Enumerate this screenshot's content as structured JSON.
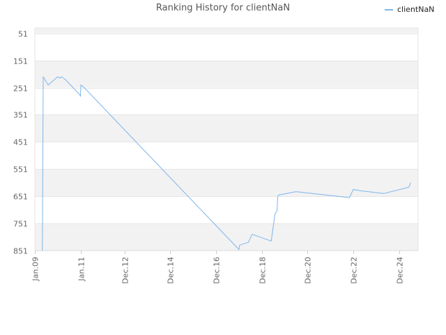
{
  "chart_data": {
    "type": "line",
    "title": "Ranking History for clientNaN",
    "xlabel": "",
    "ylabel": "",
    "y_reversed": true,
    "ylim": [
      31,
      851
    ],
    "xlim": [
      "2009-01-01",
      "2025-10-01"
    ],
    "y_ticks": [
      51,
      151,
      251,
      351,
      451,
      551,
      651,
      751,
      851
    ],
    "x_ticks": [
      {
        "label": "Jan.09",
        "date": "2009-01-01"
      },
      {
        "label": "Jan.11",
        "date": "2011-01-01"
      },
      {
        "label": "Dec.12",
        "date": "2012-12-01"
      },
      {
        "label": "Dec.14",
        "date": "2014-12-01"
      },
      {
        "label": "Dec.16",
        "date": "2016-12-01"
      },
      {
        "label": "Dec.18",
        "date": "2018-12-01"
      },
      {
        "label": "Dec.20",
        "date": "2020-12-01"
      },
      {
        "label": "Dec.22",
        "date": "2022-12-01"
      },
      {
        "label": "Dec.24",
        "date": "2024-12-01"
      }
    ],
    "legend": "top-right",
    "grid": true,
    "series": [
      {
        "name": "clientNaN",
        "color": "#7cb5ec",
        "x": [
          "2009-05-01",
          "2009-05-15",
          "2009-08-01",
          "2010-01-01",
          "2010-02-01",
          "2010-03-01",
          "2010-05-01",
          "2010-12-15",
          "2010-12-31",
          "2011-01-05",
          "2011-03-01",
          "2017-11-15",
          "2017-12-01",
          "2017-12-15",
          "2018-05-01",
          "2018-07-01",
          "2019-05-01",
          "2019-07-01",
          "2019-08-01",
          "2019-08-15",
          "2019-09-01",
          "2020-01-01",
          "2020-06-01",
          "2022-10-01",
          "2022-12-01",
          "2023-04-01",
          "2024-04-01",
          "2025-05-01",
          "2025-05-15",
          "2025-06-01"
        ],
        "y": [
          851,
          211,
          241,
          211,
          216,
          211,
          221,
          276,
          283,
          241,
          251,
          843,
          848,
          831,
          821,
          791,
          816,
          716,
          706,
          651,
          646,
          641,
          634,
          656,
          626,
          631,
          641,
          618,
          613,
          601
        ]
      }
    ]
  }
}
